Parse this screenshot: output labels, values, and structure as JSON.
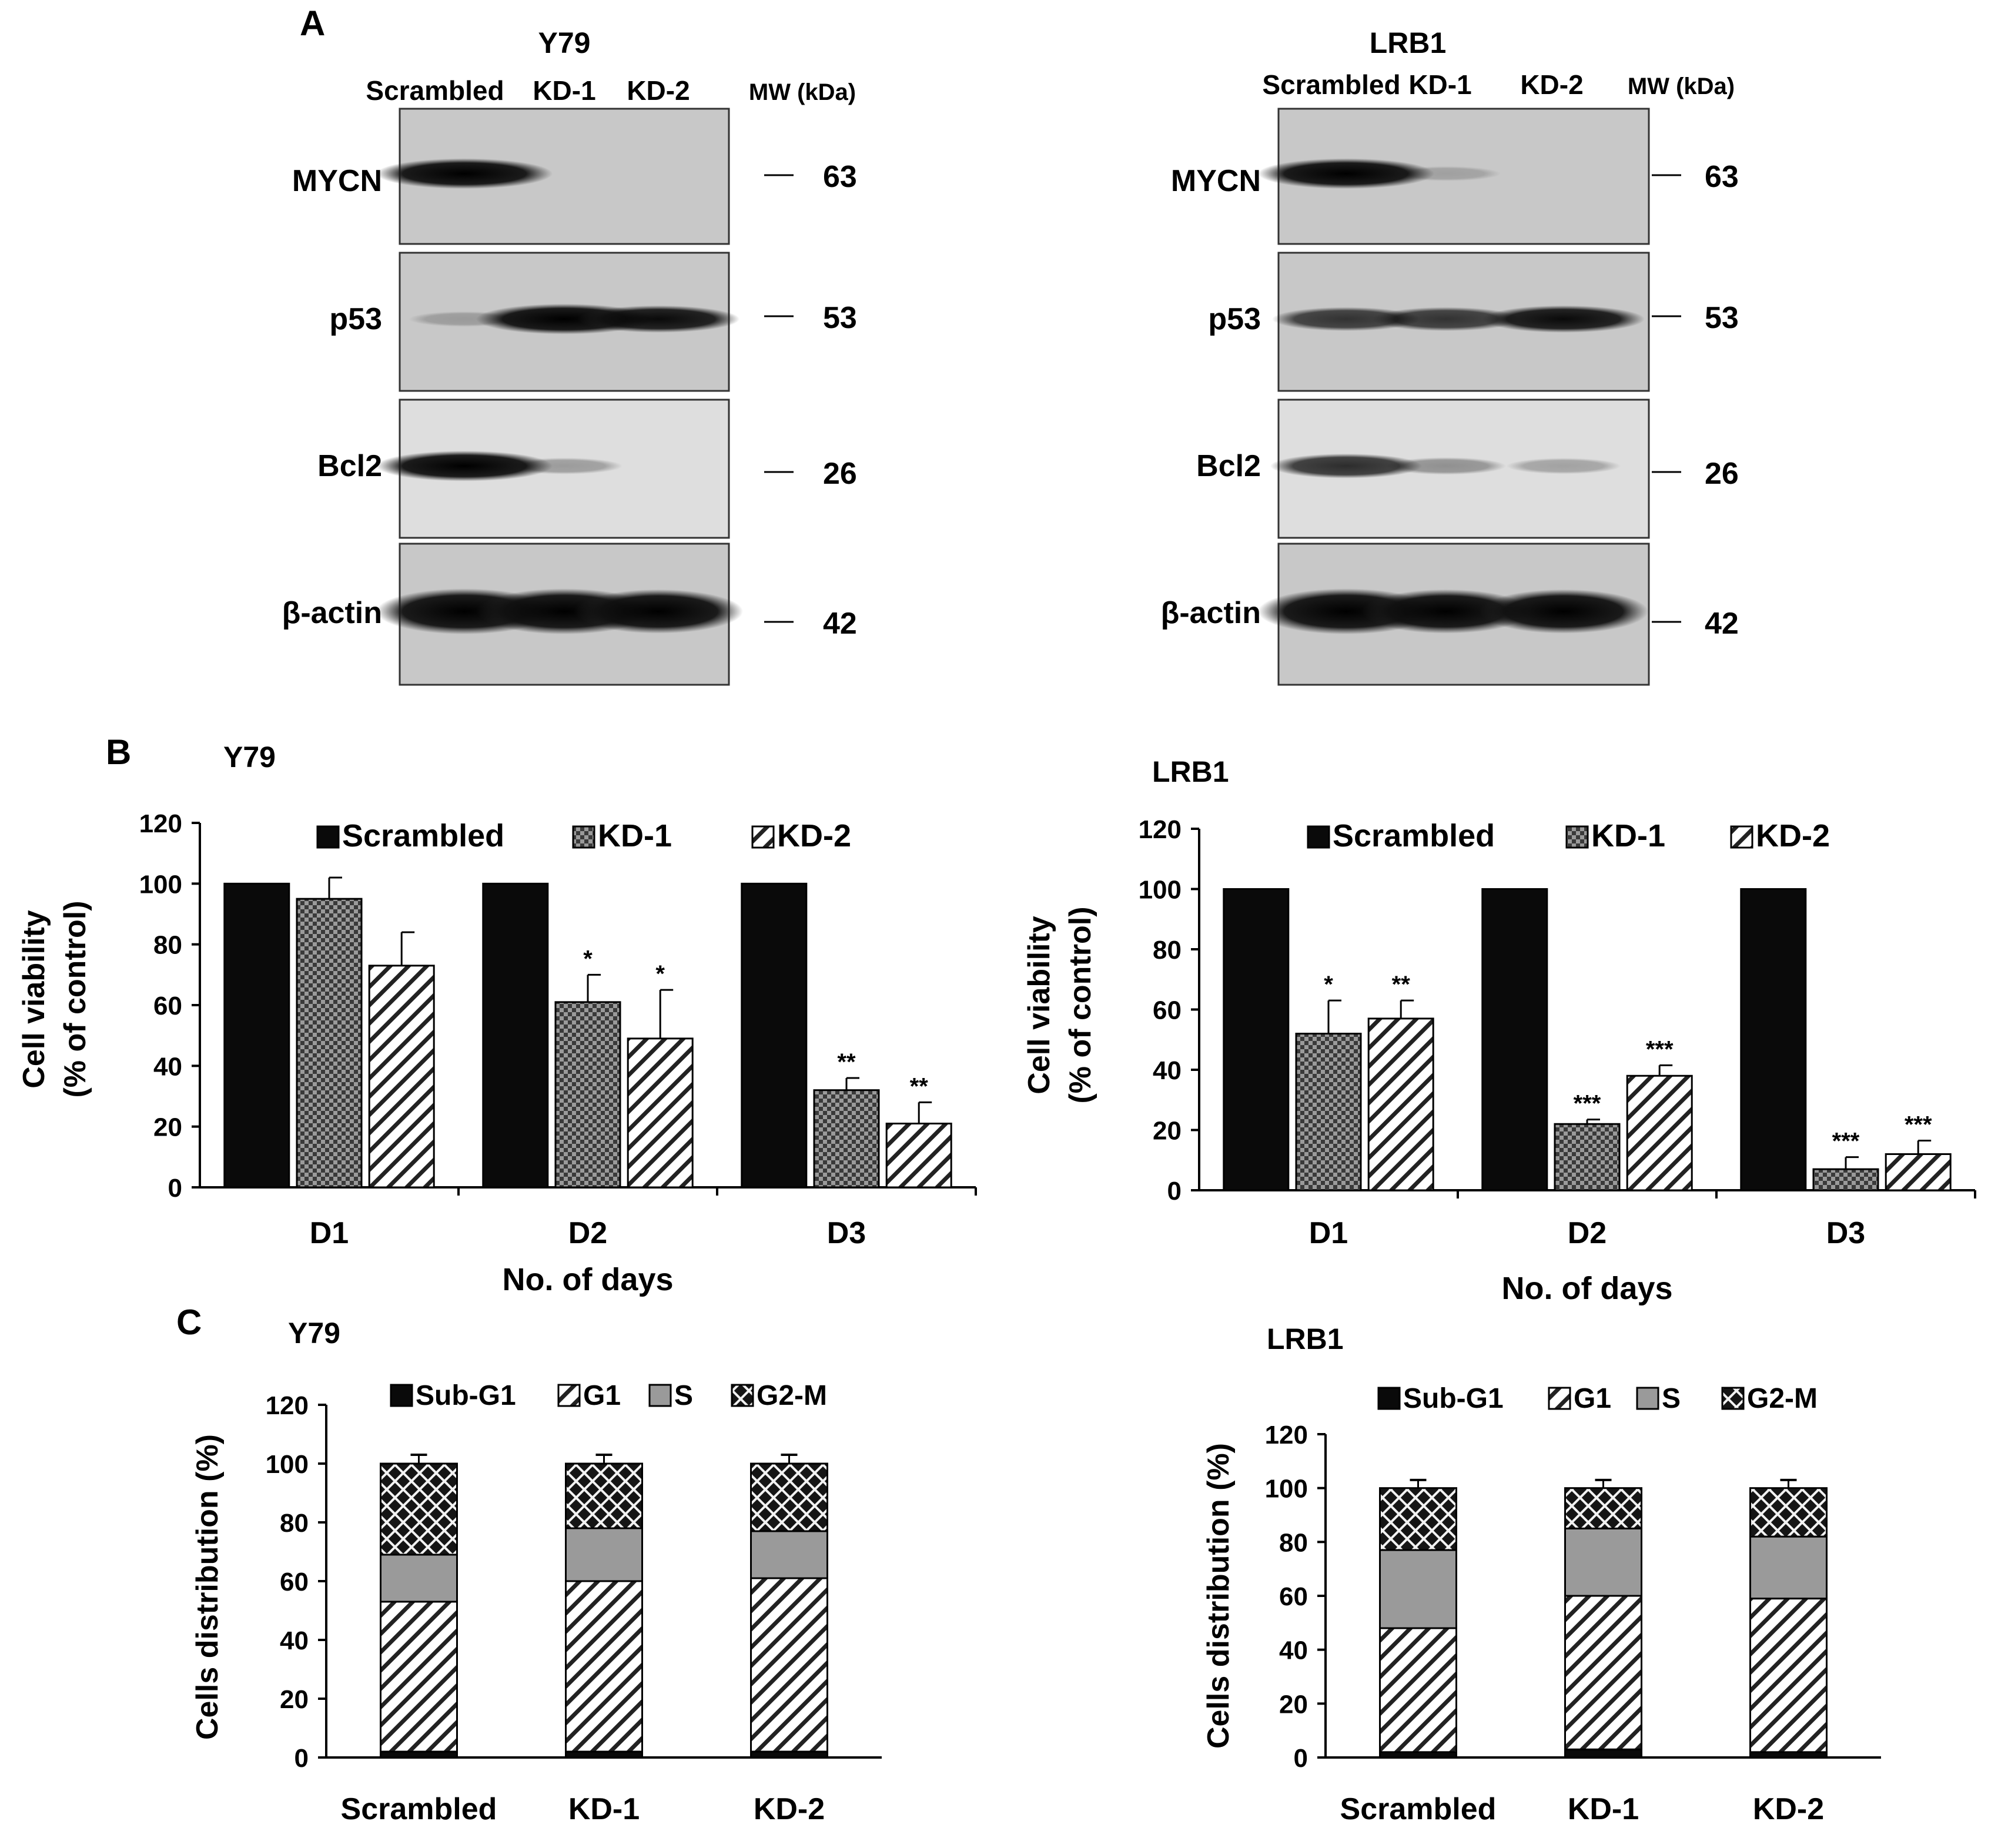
{
  "panels": {
    "A": "A",
    "B": "B",
    "C": "C"
  },
  "western": [
    {
      "cell_line": "Y79",
      "lanes": [
        "Scrambled",
        "KD-1",
        "KD-2"
      ],
      "mw_header": "MW (kDa)",
      "rows": [
        {
          "protein": "MYCN",
          "mw": "63",
          "intensity": [
            1.0,
            0.0,
            0.0
          ]
        },
        {
          "protein": "p53",
          "mw": "53",
          "intensity": [
            0.08,
            1.0,
            0.8
          ]
        },
        {
          "protein": "Bcl2",
          "mw": "26",
          "intensity": [
            1.0,
            0.15,
            0.0
          ]
        },
        {
          "protein": "β-actin",
          "mw": "42",
          "intensity": [
            1.0,
            1.0,
            0.9
          ]
        }
      ]
    },
    {
      "cell_line": "LRB1",
      "lanes": [
        "Scrambled",
        "KD-1",
        "KD-2"
      ],
      "mw_header": "MW (kDa)",
      "rows": [
        {
          "protein": "MYCN",
          "mw": "63",
          "intensity": [
            1.0,
            0.05,
            0.0
          ]
        },
        {
          "protein": "p53",
          "mw": "53",
          "intensity": [
            0.6,
            0.6,
            0.8
          ]
        },
        {
          "protein": "Bcl2",
          "mw": "26",
          "intensity": [
            0.65,
            0.2,
            0.12
          ]
        },
        {
          "protein": "β-actin",
          "mw": "42",
          "intensity": [
            1.0,
            0.9,
            0.9
          ]
        }
      ]
    }
  ],
  "chart_data": [
    {
      "type": "bar",
      "title": "Y79",
      "categories": [
        "D1",
        "D2",
        "D3"
      ],
      "xlabel": "No. of days",
      "ylabel": [
        "Cell viability",
        "(% of control)"
      ],
      "ylim": [
        0,
        120
      ],
      "yticks": [
        0,
        20,
        40,
        60,
        80,
        100,
        120
      ],
      "series": [
        {
          "name": "Scrambled",
          "pattern": "solid",
          "values": [
            100,
            100,
            100
          ],
          "errors": [
            0,
            0,
            0
          ],
          "sig": [
            "",
            "",
            ""
          ]
        },
        {
          "name": "KD-1",
          "pattern": "check",
          "values": [
            95,
            61,
            32
          ],
          "errors": [
            7,
            9,
            4
          ],
          "sig": [
            "",
            "*",
            "**"
          ]
        },
        {
          "name": "KD-2",
          "pattern": "hatch",
          "values": [
            73,
            49,
            21
          ],
          "errors": [
            11,
            16,
            7
          ],
          "sig": [
            "",
            "*",
            "**"
          ]
        }
      ],
      "legend_position": "top"
    },
    {
      "type": "bar",
      "title": "LRB1",
      "categories": [
        "D1",
        "D2",
        "D3"
      ],
      "xlabel": "No. of days",
      "ylabel": [
        "Cell viability",
        "(% of control)"
      ],
      "ylim": [
        0,
        120
      ],
      "yticks": [
        0,
        20,
        40,
        60,
        80,
        100,
        120
      ],
      "series": [
        {
          "name": "Scrambled",
          "pattern": "solid",
          "values": [
            100,
            100,
            100
          ],
          "errors": [
            0,
            0,
            0
          ],
          "sig": [
            "",
            "",
            ""
          ]
        },
        {
          "name": "KD-1",
          "pattern": "check",
          "values": [
            52,
            22,
            7
          ],
          "errors": [
            11,
            1.5,
            4
          ],
          "sig": [
            "*",
            "***",
            "***"
          ]
        },
        {
          "name": "KD-2",
          "pattern": "hatch",
          "values": [
            57,
            38,
            12
          ],
          "errors": [
            6,
            3.5,
            4.5
          ],
          "sig": [
            "**",
            "***",
            "***"
          ]
        }
      ],
      "legend_position": "top"
    },
    {
      "type": "bar",
      "stacked": true,
      "title": "Y79",
      "categories": [
        "Scrambled",
        "KD-1",
        "KD-2"
      ],
      "xlabel": "",
      "ylabel": "Cells distribution (%)",
      "ylim": [
        0,
        120
      ],
      "yticks": [
        0,
        20,
        40,
        60,
        80,
        100,
        120
      ],
      "series": [
        {
          "name": "Sub-G1",
          "pattern": "solid",
          "values": [
            2,
            2,
            2
          ],
          "errors": [
            0.5,
            0.5,
            1.5
          ]
        },
        {
          "name": "G1",
          "pattern": "hatch",
          "values": [
            51,
            58,
            59
          ],
          "errors": [
            2,
            1.5,
            1.5
          ]
        },
        {
          "name": "S",
          "pattern": "gray",
          "values": [
            16,
            18,
            16
          ],
          "errors": [
            1.5,
            2,
            2
          ]
        },
        {
          "name": "G2-M",
          "pattern": "cross",
          "values": [
            31,
            22,
            23
          ],
          "errors": [
            3,
            3,
            3
          ]
        }
      ],
      "legend_position": "top"
    },
    {
      "type": "bar",
      "stacked": true,
      "title": "LRB1",
      "categories": [
        "Scrambled",
        "KD-1",
        "KD-2"
      ],
      "xlabel": "",
      "ylabel": "Cells distribution (%)",
      "ylim": [
        0,
        120
      ],
      "yticks": [
        0,
        20,
        40,
        60,
        80,
        100,
        120
      ],
      "series": [
        {
          "name": "Sub-G1",
          "pattern": "solid",
          "values": [
            2,
            3,
            2
          ],
          "errors": [
            0.5,
            1,
            0.5
          ]
        },
        {
          "name": "G1",
          "pattern": "hatch",
          "values": [
            46,
            57,
            57
          ],
          "errors": [
            1.5,
            1.5,
            3
          ]
        },
        {
          "name": "S",
          "pattern": "gray",
          "values": [
            29,
            25,
            23
          ],
          "errors": [
            2,
            1,
            1
          ]
        },
        {
          "name": "G2-M",
          "pattern": "cross",
          "values": [
            23,
            15,
            18
          ],
          "errors": [
            3,
            3,
            3
          ]
        }
      ],
      "legend_position": "top"
    }
  ]
}
